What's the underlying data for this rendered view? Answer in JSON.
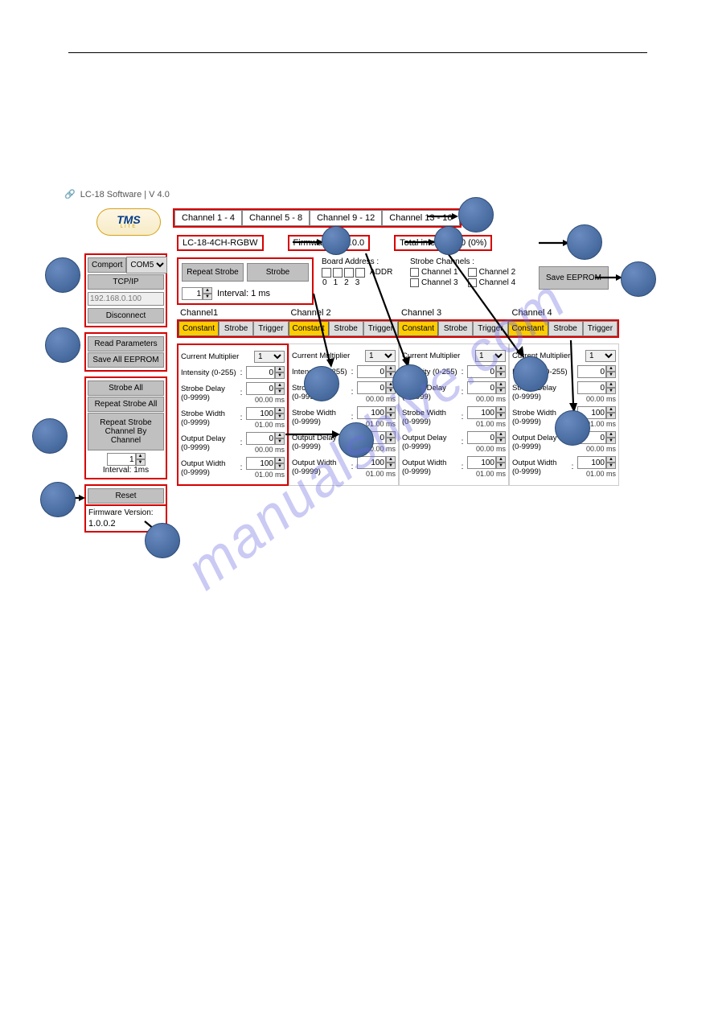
{
  "meta": {
    "title": "LC-18 Software | V 4.0"
  },
  "watermark": "manualshive.com",
  "logo": {
    "text": "TMS",
    "sub": "LITE"
  },
  "top_tabs": [
    "Channel 1 - 4",
    "Channel 5 - 8",
    "Channel 9 - 12",
    "Channel 13 - 16"
  ],
  "info": {
    "model": "LC-18-4CH-RGBW",
    "firmware_label": "Firmware : 4.0.0.0",
    "total_intensity_label": "Total intensity :  0 (0%)"
  },
  "sidebar": {
    "comport_label": "Comport",
    "comport_value": "COM5",
    "tcpip_label": "TCP/IP",
    "ip_value": "192.168.0.100",
    "disconnect": "Disconnect",
    "read_params": "Read Parameters",
    "save_all": "Save All EEPROM",
    "strobe_all": "Strobe All",
    "repeat_strobe_all": "Repeat Strobe All",
    "repeat_channel": "Repeat Strobe Channel By Channel",
    "interval_input": "1",
    "interval_label": "Interval: 1ms",
    "reset": "Reset",
    "fw_version_label": "Firmware Version:",
    "fw_version_value": "1.0.0.2"
  },
  "strobe_panel": {
    "repeat_strobe": "Repeat Strobe",
    "strobe": "Strobe",
    "interval_input": "1",
    "interval_label": "Interval: 1 ms"
  },
  "board_addr": {
    "label": "Board Address :",
    "nums": [
      "0",
      "1",
      "2",
      "3"
    ],
    "addr_text": "ADDR"
  },
  "strobe_channels": {
    "label": "Strobe Channels :",
    "items": [
      "Channel 1",
      "Channel 2",
      "Channel 3",
      "Channel 4"
    ]
  },
  "save_eeprom": "Save EEPROM",
  "channel_heads": [
    "Channel1",
    "Channel 2",
    "Channel 3",
    "Channel 4"
  ],
  "mode_labels": [
    "Constant",
    "Strobe",
    "Trigger"
  ],
  "params": {
    "current_multiplier_label": "Current Multiplier",
    "current_multiplier_value": "1",
    "intensity_label": "Intensity (0-255)",
    "intensity_value": "0",
    "strobe_delay_label": "Strobe Delay (0-9999)",
    "strobe_width_label": "Strobe Width (0-9999)",
    "output_delay_label": "Output Delay (0-9999)",
    "output_width_label": "Output Width (0-9999)",
    "val_0": "0",
    "val_100": "100",
    "ms_00": "00.00 ms",
    "ms_01": "01.00 ms",
    "colon": ":"
  },
  "colors": {
    "highlight_yellow": "#ffcc00",
    "red_outline": "#d60000",
    "button_bg": "#c0c0c0",
    "circle_fill": "#4b6ea3"
  }
}
